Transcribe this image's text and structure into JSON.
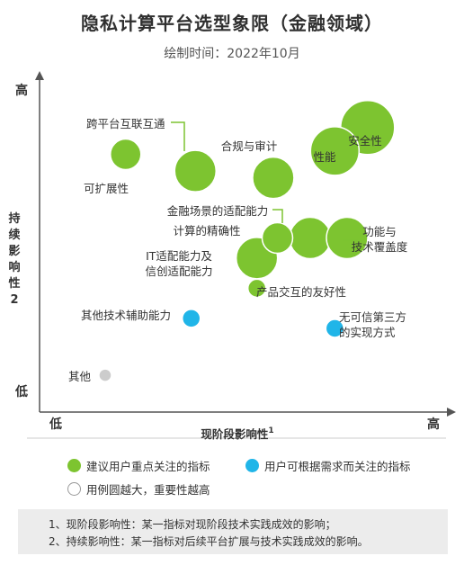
{
  "title": "隐私计算平台选型象限（金融领域）",
  "subtitle": "绘制时间：2022年10月",
  "colors": {
    "green": "#7dc430",
    "blue": "#20b5e8",
    "gray": "#cccccc",
    "axis": "#555555",
    "leader": "#7dc430"
  },
  "chart_data": {
    "type": "scatter",
    "subtype": "bubble-quadrant",
    "xlabel": "现阶段影响性",
    "xlabel_sup": "1",
    "ylabel": "持续影响性",
    "ylabel_sup": "2",
    "x_low_label": "低",
    "x_high_label": "高",
    "y_low_label": "低",
    "y_high_label": "高",
    "xlim": [
      0,
      100
    ],
    "ylim": [
      0,
      100
    ],
    "grid": false,
    "series": [
      {
        "name": "建议用户重点关注的指标",
        "color": "#7dc430",
        "points": [
          {
            "label": "可扩展性",
            "x": 21,
            "y": 77,
            "size": 3
          },
          {
            "label": "跨平台互联互通",
            "x": 38,
            "y": 72,
            "size": 4
          },
          {
            "label": "合规与审计",
            "x": 57,
            "y": 70,
            "size": 4
          },
          {
            "label": "性能",
            "x": 72,
            "y": 78,
            "size": 5
          },
          {
            "label": "安全性",
            "x": 80,
            "y": 85,
            "size": 6
          },
          {
            "label": "金融场景的适配能力",
            "x": 66,
            "y": 52,
            "size": 4
          },
          {
            "label": "计算的精确性",
            "x": 58,
            "y": 52,
            "size": 3
          },
          {
            "label": "功能与技术覆盖度",
            "x": 75,
            "y": 52,
            "size": 4
          },
          {
            "label": "IT适配能力及信创适配能力",
            "x": 53,
            "y": 46,
            "size": 4
          },
          {
            "label": "产品交互的友好性",
            "x": 53,
            "y": 37,
            "size": 2
          }
        ]
      },
      {
        "name": "用户可根据需求而关注的指标",
        "color": "#20b5e8",
        "points": [
          {
            "label": "其他技术辅助能力",
            "x": 37,
            "y": 28,
            "size": 2
          },
          {
            "label": "无可信第三方的实现方式",
            "x": 72,
            "y": 25,
            "size": 2
          }
        ]
      },
      {
        "name": "其他",
        "color": "#cccccc",
        "points": [
          {
            "label": "其他",
            "x": 16,
            "y": 11,
            "size": 1
          }
        ]
      }
    ]
  },
  "legend": {
    "items": [
      {
        "label": "建议用户重点关注的指标",
        "color": "#7dc430",
        "style": "filled"
      },
      {
        "label": "用户可根据需求而关注的指标",
        "color": "#20b5e8",
        "style": "filled"
      },
      {
        "label": "用例圆越大，重要性越高",
        "color": "#999999",
        "style": "outline"
      }
    ]
  },
  "notes": [
    "1、现阶段影响性：某一指标对现阶段技术实践成效的影响；",
    "2、持续影响性：某一指标对后续平台扩展与技术实践成效的影响。"
  ]
}
